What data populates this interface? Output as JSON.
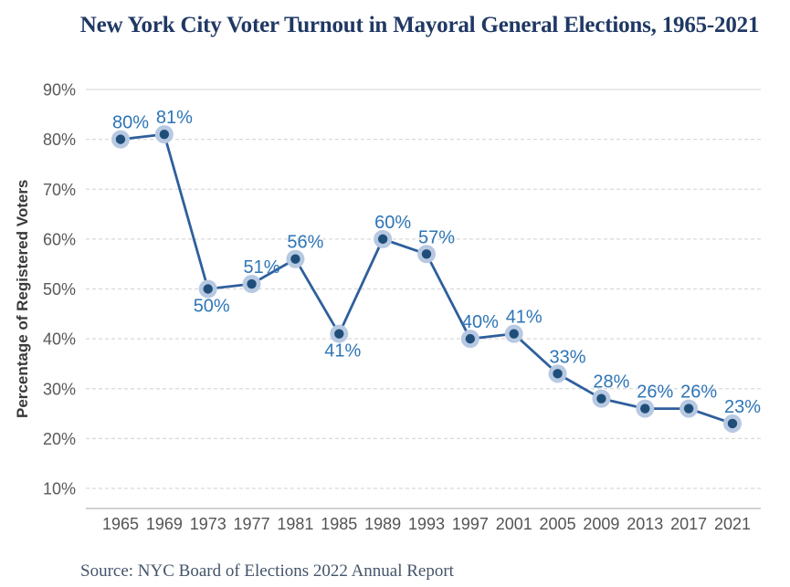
{
  "title": "New York City Voter Turnout in Mayoral General Elections, 1965-2021",
  "y_axis_title": "Percentage of Registered Voters",
  "source": "Source: NYC Board of Elections 2022 Annual Report",
  "colors": {
    "title": "#1F3864",
    "line": "#2E5F9C",
    "marker_core": "#1F4E79",
    "marker_halo": "#B7C9E2",
    "data_label": "#2E75B6",
    "y_tick_label": "#595959",
    "x_tick_label": "#545454",
    "gridline_dashed": "#D9D9D9",
    "gridline_top_solid": "#E9E9E9",
    "axis_line": "#D2D2D2",
    "source_text": "#44546A",
    "background": "#FFFFFF"
  },
  "chart_data": {
    "type": "line",
    "title": "New York City Voter Turnout in Mayoral General Elections, 1965-2021",
    "xlabel": "",
    "ylabel": "Percentage of Registered Voters",
    "categories": [
      "1965",
      "1969",
      "1973",
      "1977",
      "1981",
      "1985",
      "1989",
      "1993",
      "1997",
      "2001",
      "2005",
      "2009",
      "2013",
      "2017",
      "2021"
    ],
    "values": [
      80,
      81,
      50,
      51,
      56,
      41,
      60,
      57,
      40,
      41,
      33,
      28,
      26,
      26,
      23
    ],
    "point_labels": [
      "80%",
      "81%",
      "50%",
      "51%",
      "56%",
      "41%",
      "60%",
      "57%",
      "40%",
      "41%",
      "33%",
      "28%",
      "26%",
      "26%",
      "23%"
    ],
    "labels_below_indices": [
      2,
      5
    ],
    "y_ticks": [
      "90%",
      "80%",
      "70%",
      "60%",
      "50%",
      "40%",
      "30%",
      "20%",
      "10%"
    ],
    "y_tick_values": [
      90,
      80,
      70,
      60,
      50,
      40,
      30,
      20,
      10
    ],
    "ylim": [
      5,
      93
    ],
    "grid": "horizontal, dashed (top 90% line solid)",
    "legend": "none",
    "marker": "filled circle with light halo",
    "source": "Source: NYC Board of Elections 2022 Annual Report"
  }
}
